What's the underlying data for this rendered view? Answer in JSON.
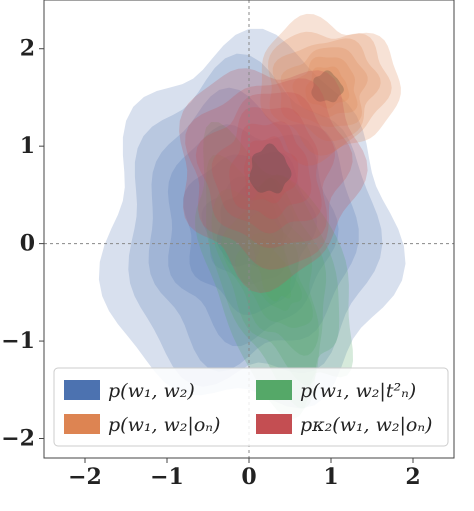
{
  "chart_data": {
    "type": "contour",
    "title": "",
    "xlabel": "",
    "ylabel": "",
    "xlim": [
      -2.5,
      2.5
    ],
    "ylim": [
      -2.2,
      2.5
    ],
    "xticks": [
      -2,
      -1,
      0,
      1,
      2
    ],
    "yticks": [
      -2,
      -1,
      0,
      1,
      2
    ],
    "xtick_labels": [
      "−2",
      "−1",
      "0",
      "1",
      "2"
    ],
    "ytick_labels": [
      "−2",
      "−1",
      "0",
      "1",
      "2"
    ],
    "reference_lines": {
      "x": 0,
      "y": 0,
      "style": "dashed",
      "color": "#888888"
    },
    "legend_position": "bottom",
    "series": [
      {
        "name": "p(w1, w2)",
        "color": "#4c72b0",
        "center": [
          0.0,
          0.15
        ],
        "spread": [
          1.75,
          1.85
        ],
        "levels": 6
      },
      {
        "name": "p(w1, w2 | tN²)",
        "color": "#55a868",
        "center": [
          0.3,
          -0.3
        ],
        "spread": [
          0.8,
          1.4
        ],
        "levels": 6
      },
      {
        "name": "p(w1, w2 | oN)",
        "color": "#dd8452",
        "center": [
          0.95,
          1.6
        ],
        "spread": [
          0.85,
          0.7
        ],
        "levels": 6
      },
      {
        "name": "pκ2(w1, w2 | oN)",
        "color": "#c44e52",
        "center": [
          0.25,
          0.75
        ],
        "spread": [
          1.1,
          1.1
        ],
        "levels": 6
      }
    ]
  },
  "legend": {
    "items": [
      {
        "color": "#4c72b0",
        "label": "p(w₁, w₂)"
      },
      {
        "color": "#55a868",
        "label": "p(w₁, w₂|t²ₙ)"
      },
      {
        "color": "#dd8452",
        "label": "p(w₁, w₂|oₙ)"
      },
      {
        "color": "#c44e52",
        "label": "pκ₂(w₁, w₂|oₙ)"
      }
    ]
  }
}
